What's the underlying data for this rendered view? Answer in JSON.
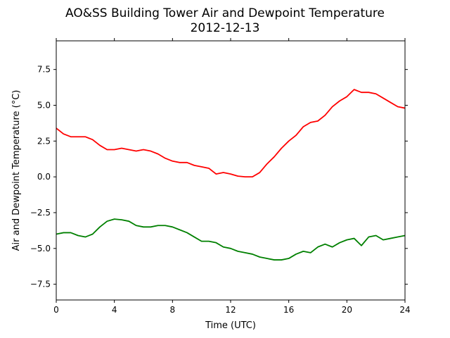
{
  "chart_data": {
    "type": "line",
    "title": "AO&SS Building Tower Air and Dewpoint Temperature",
    "subtitle": "2012-12-13",
    "xlabel": "Time (UTC)",
    "ylabel": "Air and Dewpoint Temperature (°C)",
    "xlim": [
      0,
      24
    ],
    "ylim": [
      -8.6,
      9.5
    ],
    "xticks": [
      0,
      4,
      8,
      12,
      16,
      20,
      24
    ],
    "xtick_labels": [
      "0",
      "4",
      "8",
      "12",
      "16",
      "20",
      "24"
    ],
    "yticks": [
      -7.5,
      -5.0,
      -2.5,
      0.0,
      2.5,
      5.0,
      7.5
    ],
    "ytick_labels": [
      "−7.5",
      "−5.0",
      "−2.5",
      "0.0",
      "2.5",
      "5.0",
      "7.5"
    ],
    "grid": false,
    "series": [
      {
        "color": "#ff0000",
        "x": [
          0,
          0.5,
          1,
          1.5,
          2,
          2.5,
          3,
          3.5,
          4,
          4.5,
          5,
          5.5,
          6,
          6.5,
          7,
          7.5,
          8,
          8.5,
          9,
          9.5,
          10,
          10.5,
          11,
          11.5,
          12,
          12.5,
          13,
          13.5,
          14,
          14.5,
          15,
          15.5,
          16,
          16.5,
          17,
          17.5,
          18,
          18.5,
          19,
          19.5,
          20,
          20.5,
          21,
          21.5,
          22,
          22.5,
          23,
          23.5,
          24
        ],
        "y": [
          3.4,
          3.0,
          2.8,
          2.8,
          2.8,
          2.6,
          2.2,
          1.9,
          1.9,
          2.0,
          1.9,
          1.8,
          1.9,
          1.8,
          1.6,
          1.3,
          1.1,
          1.0,
          1.0,
          0.8,
          0.7,
          0.6,
          0.2,
          0.3,
          0.2,
          0.05,
          0.0,
          0.0,
          0.3,
          0.9,
          1.4,
          2.0,
          2.5,
          2.9,
          3.5,
          3.8,
          3.9,
          4.3,
          4.9,
          5.3,
          5.6,
          6.1,
          5.9,
          5.9,
          5.8,
          5.5,
          5.2,
          4.9,
          4.8
        ]
      },
      {
        "color": "#008000",
        "x": [
          0,
          0.5,
          1,
          1.5,
          2,
          2.5,
          3,
          3.5,
          4,
          4.5,
          5,
          5.5,
          6,
          6.5,
          7,
          7.5,
          8,
          8.5,
          9,
          9.5,
          10,
          10.5,
          11,
          11.5,
          12,
          12.5,
          13,
          13.5,
          14,
          14.5,
          15,
          15.5,
          16,
          16.5,
          17,
          17.5,
          18,
          18.5,
          19,
          19.5,
          20,
          20.5,
          21,
          21.5,
          22,
          22.5,
          23,
          23.5,
          24
        ],
        "y": [
          -4.0,
          -3.9,
          -3.9,
          -4.1,
          -4.2,
          -4.0,
          -3.5,
          -3.1,
          -2.95,
          -3.0,
          -3.1,
          -3.4,
          -3.5,
          -3.5,
          -3.4,
          -3.4,
          -3.5,
          -3.7,
          -3.9,
          -4.2,
          -4.5,
          -4.5,
          -4.6,
          -4.9,
          -5.0,
          -5.2,
          -5.3,
          -5.4,
          -5.6,
          -5.7,
          -5.8,
          -5.8,
          -5.7,
          -5.4,
          -5.2,
          -5.3,
          -4.9,
          -4.7,
          -4.9,
          -4.6,
          -4.4,
          -4.3,
          -4.8,
          -4.2,
          -4.1,
          -4.4,
          -4.3,
          -4.2,
          -4.1
        ]
      }
    ]
  }
}
